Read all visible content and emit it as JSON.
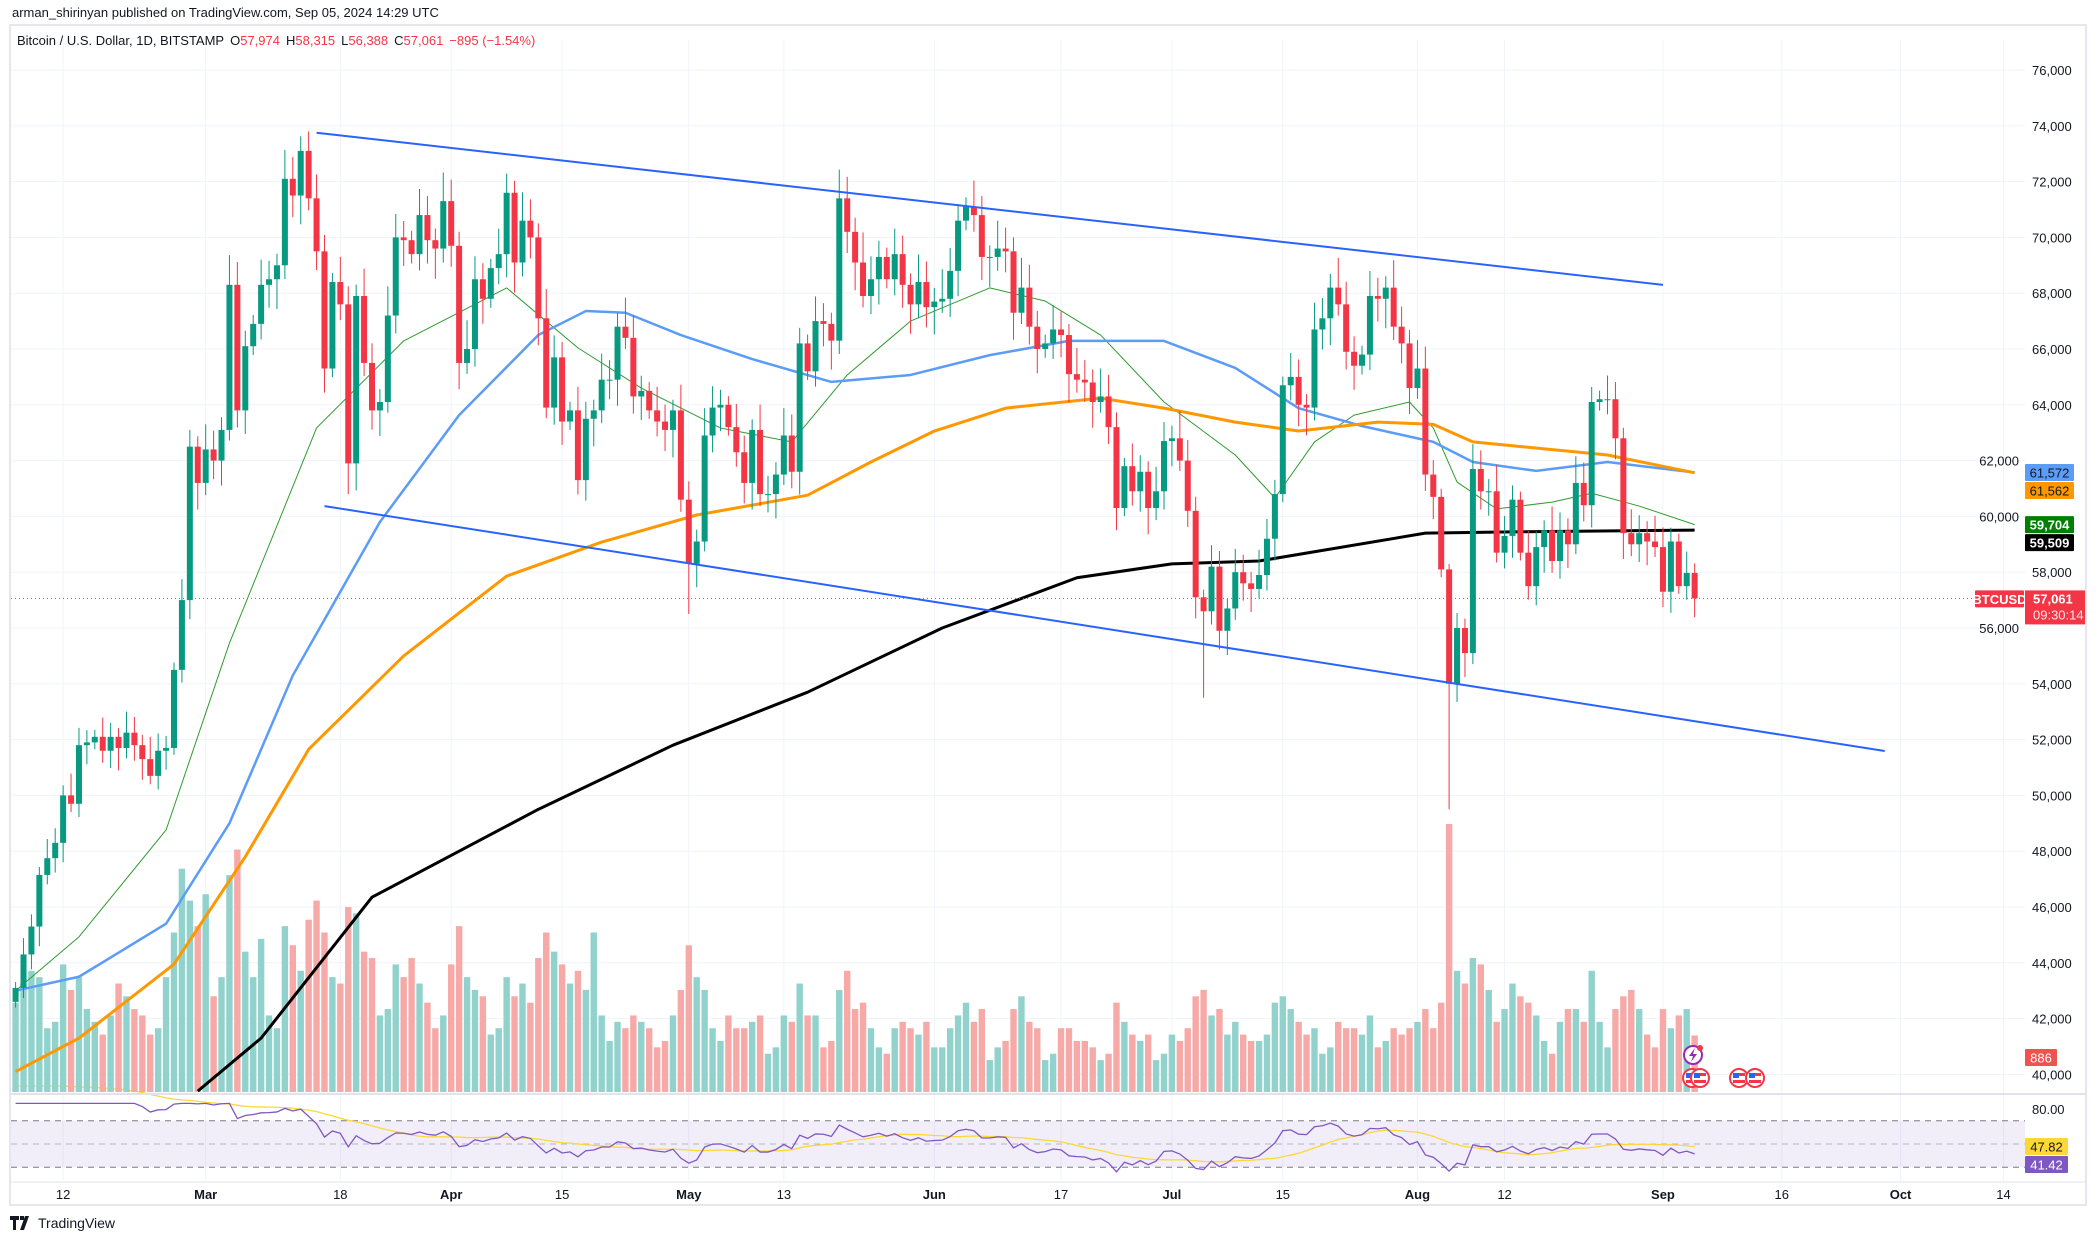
{
  "publisher_line": "arman_shirinyan published on TradingView.com, Sep 05, 2024 14:29 UTC",
  "legend": {
    "symbol": "Bitcoin / U.S. Dollar, 1D, BITSTAMP",
    "o_label": "O",
    "o": "57,974",
    "h_label": "H",
    "h": "58,315",
    "l_label": "L",
    "l": "56,388",
    "c_label": "C",
    "c": "57,061",
    "change": "−895 (−1.54%)"
  },
  "footer": {
    "logo_text": "TradingView"
  },
  "colors": {
    "up": "#089981",
    "down": "#f23645",
    "vol_up": "#92d2cc",
    "vol_down": "#f7a9a7",
    "ma20": "#2e9b2e",
    "ma50": "#5b9cf6",
    "ma100": "#ff9800",
    "ma200": "#000000",
    "channel": "#2962ff",
    "rsi": "#7e57c2",
    "rsi_ma": "#fdd835"
  },
  "chart_data": {
    "type": "candlestick",
    "symbol": "BTCUSD",
    "interval": "1D",
    "start_date": "2024-02-06",
    "first_open": 42600,
    "closes": [
      43100,
      44300,
      45300,
      47150,
      47750,
      48300,
      50000,
      49700,
      51800,
      51900,
      52100,
      51600,
      52100,
      51700,
      52250,
      51800,
      51300,
      50700,
      51600,
      51700,
      54500,
      57000,
      62500,
      61200,
      62400,
      62000,
      63100,
      68300,
      63800,
      66100,
      66900,
      68300,
      68500,
      69000,
      72100,
      71500,
      73100,
      71400,
      69500,
      65300,
      68400,
      67600,
      61900,
      67900,
      65500,
      63800,
      64100,
      67200,
      70000,
      69900,
      69400,
      70800,
      69900,
      69600,
      71300,
      69700,
      65500,
      66000,
      68500,
      67800,
      68900,
      69400,
      71600,
      69100,
      70600,
      70000,
      67100,
      63900,
      65700,
      63400,
      63800,
      61300,
      63500,
      63800,
      64900,
      64900,
      66800,
      66400,
      64300,
      64500,
      63800,
      63400,
      63100,
      63800,
      60600,
      58300,
      59100,
      62900,
      63900,
      64000,
      63200,
      62300,
      61200,
      63100,
      60800,
      60800,
      61500,
      62900,
      61600,
      66200,
      65200,
      67000,
      66900,
      66300,
      71400,
      70200,
      69100,
      67900,
      68500,
      69300,
      68500,
      69400,
      68300,
      67600,
      68400,
      67500,
      67700,
      67800,
      68800,
      70600,
      71100,
      70800,
      69300,
      69300,
      69600,
      69500,
      67300,
      68200,
      66800,
      66000,
      66200,
      66700,
      66500,
      65100,
      64900,
      64800,
      64100,
      64300,
      63200,
      60300,
      61800,
      60900,
      61600,
      60300,
      60900,
      62700,
      62800,
      62000,
      60200,
      57100,
      56600,
      58200,
      55900,
      56700,
      58000,
      57600,
      57400,
      57900,
      59200,
      60800,
      64700,
      65000,
      64000,
      63900,
      66700,
      67100,
      68200,
      67600,
      65900,
      65400,
      65800,
      67900,
      67800,
      68200,
      66800,
      66200,
      64600,
      65300,
      61500,
      60700,
      58100,
      54000,
      56000,
      55100,
      61700,
      60900,
      60900,
      58700,
      59300,
      60600,
      58700,
      57500,
      58900,
      59500,
      58400,
      59500,
      59000,
      61200,
      60400,
      64100,
      64200,
      64200,
      62800,
      59400,
      59000,
      59400,
      59100,
      58900,
      57300,
      59100,
      57500,
      57974,
      57061
    ],
    "wick_pct": 1.2,
    "extremes": [
      {
        "day": 37,
        "high": 73800
      },
      {
        "day": 42,
        "low": 60800
      },
      {
        "day": 85,
        "low": 56500
      },
      {
        "day": 150,
        "low": 53500
      },
      {
        "day": 181,
        "low": 49500,
        "high": 58300
      },
      {
        "day": 212,
        "high": 58315,
        "low": 56388
      }
    ],
    "volume": [
      1400,
      1700,
      1900,
      1800,
      1000,
      1100,
      2000,
      1600,
      1800,
      1300,
      1100,
      900,
      1200,
      1700,
      1500,
      1300,
      1200,
      900,
      1000,
      1800,
      2500,
      3500,
      3000,
      2600,
      3100,
      1500,
      1800,
      3400,
      3800,
      2200,
      1800,
      2400,
      1200,
      1000,
      2600,
      2300,
      1900,
      2700,
      3000,
      2500,
      1800,
      1700,
      2900,
      2800,
      2200,
      2100,
      1200,
      1300,
      2000,
      1800,
      2100,
      1700,
      1400,
      1000,
      1200,
      2000,
      2600,
      1800,
      1600,
      1500,
      900,
      1000,
      1800,
      1500,
      1700,
      1400,
      2100,
      2500,
      2200,
      2000,
      1700,
      1900,
      1600,
      2500,
      1200,
      800,
      1100,
      1000,
      1200,
      1100,
      1000,
      700,
      800,
      1200,
      1600,
      2300,
      1800,
      1600,
      1000,
      800,
      1200,
      1000,
      1000,
      1100,
      1200,
      600,
      700,
      1200,
      1100,
      1700,
      1200,
      1200,
      700,
      800,
      1600,
      1900,
      1300,
      1400,
      1000,
      700,
      600,
      1000,
      1100,
      1000,
      900,
      1100,
      700,
      700,
      1000,
      1200,
      1400,
      1100,
      1300,
      500,
      700,
      800,
      1300,
      1500,
      1100,
      1000,
      500,
      600,
      1000,
      1000,
      800,
      800,
      700,
      500,
      600,
      1400,
      1100,
      900,
      800,
      900,
      500,
      600,
      900,
      800,
      1000,
      1500,
      1600,
      1200,
      1300,
      900,
      1100,
      900,
      800,
      800,
      900,
      1400,
      1500,
      1300,
      1100,
      900,
      1000,
      600,
      700,
      1100,
      1000,
      1000,
      900,
      1200,
      700,
      800,
      1000,
      900,
      1000,
      1100,
      1300,
      1000,
      1400,
      4200,
      1900,
      1700,
      2100,
      2000,
      1600,
      1100,
      1300,
      1700,
      1500,
      1400,
      1200,
      800,
      600,
      1100,
      1300,
      1300,
      1100,
      1900,
      1100,
      700,
      1300,
      1500,
      1600,
      1300,
      900,
      700,
      1300,
      1000,
      1200,
      1300,
      886
    ],
    "moving_averages": [
      {
        "name": "MA20",
        "color_key": "ma20",
        "points": [
          [
            0,
            43000
          ],
          [
            8,
            44930
          ],
          [
            19,
            48760
          ],
          [
            27,
            55460
          ],
          [
            38,
            63170
          ],
          [
            49,
            66290
          ],
          [
            62,
            68190
          ],
          [
            71,
            66040
          ],
          [
            79,
            64600
          ],
          [
            89,
            63170
          ],
          [
            98,
            62670
          ],
          [
            105,
            65070
          ],
          [
            113,
            67000
          ],
          [
            123,
            68190
          ],
          [
            130,
            67720
          ],
          [
            137,
            66500
          ],
          [
            145,
            64100
          ],
          [
            154,
            62200
          ],
          [
            159,
            60660
          ],
          [
            164,
            62670
          ],
          [
            169,
            63630
          ],
          [
            176,
            64100
          ],
          [
            179,
            63170
          ],
          [
            182,
            61230
          ],
          [
            187,
            60270
          ],
          [
            194,
            60510
          ],
          [
            199,
            60830
          ],
          [
            205,
            60370
          ],
          [
            212,
            59704
          ]
        ]
      },
      {
        "name": "MA50",
        "color_key": "ma50",
        "points": [
          [
            0,
            43000
          ],
          [
            8,
            43500
          ],
          [
            19,
            45400
          ],
          [
            27,
            49000
          ],
          [
            35,
            54300
          ],
          [
            46,
            59800
          ],
          [
            56,
            63630
          ],
          [
            66,
            66500
          ],
          [
            72,
            67360
          ],
          [
            77,
            67300
          ],
          [
            84,
            66500
          ],
          [
            93,
            65640
          ],
          [
            103,
            64820
          ],
          [
            113,
            65070
          ],
          [
            123,
            65780
          ],
          [
            133,
            66290
          ],
          [
            145,
            66290
          ],
          [
            154,
            65320
          ],
          [
            162,
            63880
          ],
          [
            170,
            63240
          ],
          [
            179,
            62670
          ],
          [
            184,
            61950
          ],
          [
            192,
            61630
          ],
          [
            201,
            61950
          ],
          [
            212,
            61572
          ]
        ]
      },
      {
        "name": "MA100",
        "color_key": "ma100",
        "points": [
          [
            0,
            40100
          ],
          [
            8,
            41300
          ],
          [
            20,
            43950
          ],
          [
            29,
            47800
          ],
          [
            37,
            51650
          ],
          [
            49,
            55000
          ],
          [
            62,
            57860
          ],
          [
            74,
            59080
          ],
          [
            86,
            60050
          ],
          [
            100,
            60760
          ],
          [
            108,
            61950
          ],
          [
            116,
            63060
          ],
          [
            125,
            63880
          ],
          [
            137,
            64240
          ],
          [
            145,
            63880
          ],
          [
            154,
            63380
          ],
          [
            162,
            63060
          ],
          [
            172,
            63380
          ],
          [
            179,
            63300
          ],
          [
            184,
            62670
          ],
          [
            201,
            62200
          ],
          [
            212,
            61562
          ]
        ]
      },
      {
        "name": "MA200",
        "color_key": "ma200",
        "points": [
          [
            23,
            39400
          ],
          [
            31,
            41300
          ],
          [
            45,
            46350
          ],
          [
            66,
            49500
          ],
          [
            83,
            51800
          ],
          [
            100,
            53700
          ],
          [
            117,
            56000
          ],
          [
            134,
            57800
          ],
          [
            146,
            58300
          ],
          [
            157,
            58400
          ],
          [
            178,
            59400
          ],
          [
            190,
            59450
          ],
          [
            212,
            59509
          ]
        ]
      }
    ],
    "channel_lines": [
      {
        "name": "upper",
        "from": [
          38,
          73750
        ],
        "to": [
          208,
          68300
        ]
      },
      {
        "name": "lower",
        "from": [
          39,
          60370
        ],
        "to": [
          236,
          51590
        ]
      }
    ],
    "price_axis": {
      "ticks": [
        "76,000",
        "74,000",
        "72,000",
        "70,000",
        "68,000",
        "66,000",
        "64,000",
        "62,000",
        "60,000",
        "58,000",
        "56,000",
        "54,000",
        "52,000",
        "50,000",
        "48,000",
        "46,000",
        "44,000",
        "42,000",
        "40,000"
      ],
      "range": [
        40000,
        76000
      ]
    },
    "price_badges": [
      {
        "text": "61,572",
        "value": 61572,
        "bg": "#5b9cf6",
        "fg": "#131722"
      },
      {
        "text": "61,562",
        "value": 61562,
        "bg": "#ff9800",
        "fg": "#131722"
      },
      {
        "text": "59,704",
        "value": 59704,
        "bg": "#008000",
        "fg": "#ffffff"
      },
      {
        "text": "59,509",
        "value": 59509,
        "bg": "#000000",
        "fg": "#ffffff"
      }
    ],
    "last_price": {
      "symbol": "BTCUSD",
      "text": "57,061",
      "value": 57061,
      "countdown": "09:30:14"
    },
    "last_volume": "886",
    "rsi": {
      "period": 14,
      "ma_period": 14,
      "axis_label": "80.00",
      "rsi_value": "41.42",
      "ma_value": "47.82",
      "bands": [
        70,
        50,
        30
      ]
    },
    "time_axis": [
      {
        "label": "12",
        "day": 6
      },
      {
        "label": "Mar",
        "day": 24
      },
      {
        "label": "18",
        "day": 41
      },
      {
        "label": "Apr",
        "day": 55
      },
      {
        "label": "15",
        "day": 69
      },
      {
        "label": "May",
        "day": 85
      },
      {
        "label": "13",
        "day": 97
      },
      {
        "label": "Jun",
        "day": 116
      },
      {
        "label": "17",
        "day": 132
      },
      {
        "label": "Jul",
        "day": 146
      },
      {
        "label": "15",
        "day": 160
      },
      {
        "label": "Aug",
        "day": 177
      },
      {
        "label": "12",
        "day": 188
      },
      {
        "label": "Sep",
        "day": 208
      },
      {
        "label": "16",
        "day": 223
      },
      {
        "label": "Oct",
        "day": 238
      },
      {
        "label": "14",
        "day": 251
      }
    ]
  }
}
